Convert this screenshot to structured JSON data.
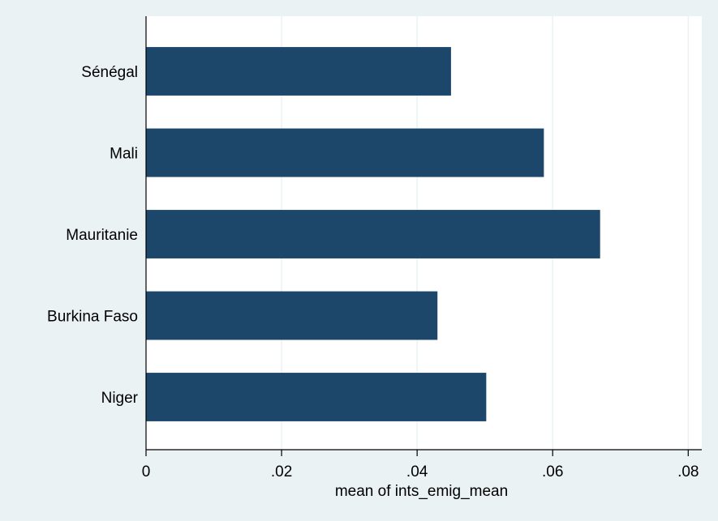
{
  "chart_data": {
    "type": "bar",
    "orientation": "horizontal",
    "categories": [
      "Sénégal",
      "Mali",
      "Mauritanie",
      "Burkina Faso",
      "Niger"
    ],
    "values": [
      0.045,
      0.0587,
      0.067,
      0.043,
      0.0502
    ],
    "xlabel": "mean of ints_emig_mean",
    "ylabel": "",
    "xlim": [
      0,
      0.082
    ],
    "xticks": [
      0,
      0.02,
      0.04,
      0.06,
      0.08
    ],
    "xtick_labels": [
      "0",
      ".02",
      ".04",
      ".06",
      ".08"
    ],
    "grid": "vertical",
    "bar_color": "#1c476b",
    "plot_background": "#ffffff",
    "page_background": "#eaf2f3",
    "grid_color": "#eaf2f3"
  }
}
